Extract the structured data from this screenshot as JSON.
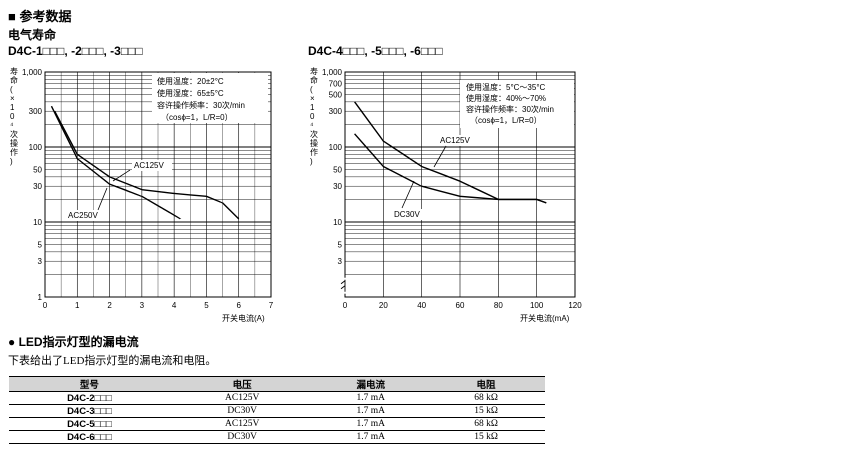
{
  "heading": "■ 参考数据",
  "subheading": "电气寿命",
  "section2_heading": "● LED指示灯型的漏电流",
  "section2_desc": "下表给出了LED指示灯型的漏电流和电阻。",
  "table": {
    "headers": [
      "型号",
      "电压",
      "漏电流",
      "电阻"
    ],
    "rows": [
      [
        "D4C-2□□□",
        "AC125V",
        "1.7 mA",
        "68 kΩ"
      ],
      [
        "D4C-3□□□",
        "DC30V",
        "1.7 mA",
        "15 kΩ"
      ],
      [
        "D4C-5□□□",
        "AC125V",
        "1.7 mA",
        "68 kΩ"
      ],
      [
        "D4C-6□□□",
        "DC30V",
        "1.7 mA",
        "15 kΩ"
      ]
    ]
  },
  "chart_data": [
    {
      "type": "line",
      "title": "D4C-1□□□, -2□□□, -3□□□",
      "ylabel": "寿命(×10⁴次操作)",
      "xlabel": "开关电流(A)",
      "y_scale": "log",
      "ylim": [
        1,
        1000
      ],
      "xlim": [
        0,
        7
      ],
      "xticks": [
        "0",
        "1",
        "2",
        "3",
        "4",
        "5",
        "6",
        "7"
      ],
      "yticks": [
        "1,000",
        "300",
        "100",
        "50",
        "30",
        "10",
        "5",
        "3",
        "1"
      ],
      "grid": true,
      "notes": [
        "使用温度：20±2°C",
        "使用湿度：65±5°C",
        "容许操作频率：30次/min",
        "（cosϕ=1，L/R=0）"
      ],
      "series": [
        {
          "name": "AC125V",
          "x": [
            0.3,
            1,
            2,
            3,
            4,
            5,
            5.5,
            6
          ],
          "y": [
            300,
            80,
            40,
            27,
            24,
            22,
            18,
            11
          ]
        },
        {
          "name": "AC250V",
          "x": [
            0.2,
            1,
            2,
            3,
            4.2
          ],
          "y": [
            350,
            70,
            32,
            22,
            11
          ]
        }
      ]
    },
    {
      "type": "line",
      "title": "D4C-4□□□, -5□□□, -6□□□",
      "ylabel": "寿命(×10⁴次操作)",
      "xlabel": "开关电流(mA)",
      "y_scale": "log",
      "ylim": [
        1,
        1000
      ],
      "xlim": [
        0,
        120
      ],
      "xticks": [
        "0",
        "20",
        "40",
        "60",
        "80",
        "100",
        "120"
      ],
      "yticks": [
        "1,000",
        "700",
        "500",
        "300",
        "100",
        "50",
        "30",
        "10",
        "5",
        "3"
      ],
      "grid": true,
      "notes": [
        "使用温度：5°C～35°C",
        "使用湿度：40%～70%",
        "容许操作频率：30次/min",
        "（cosϕ=1，L/R=0）"
      ],
      "series": [
        {
          "name": "AC125V",
          "x": [
            5,
            20,
            40,
            60,
            80,
            100,
            105
          ],
          "y": [
            400,
            120,
            55,
            35,
            20,
            20,
            18
          ]
        },
        {
          "name": "DC30V",
          "x": [
            5,
            20,
            40,
            60,
            80,
            100,
            105
          ],
          "y": [
            150,
            55,
            30,
            22,
            20,
            20,
            18
          ]
        }
      ]
    }
  ]
}
